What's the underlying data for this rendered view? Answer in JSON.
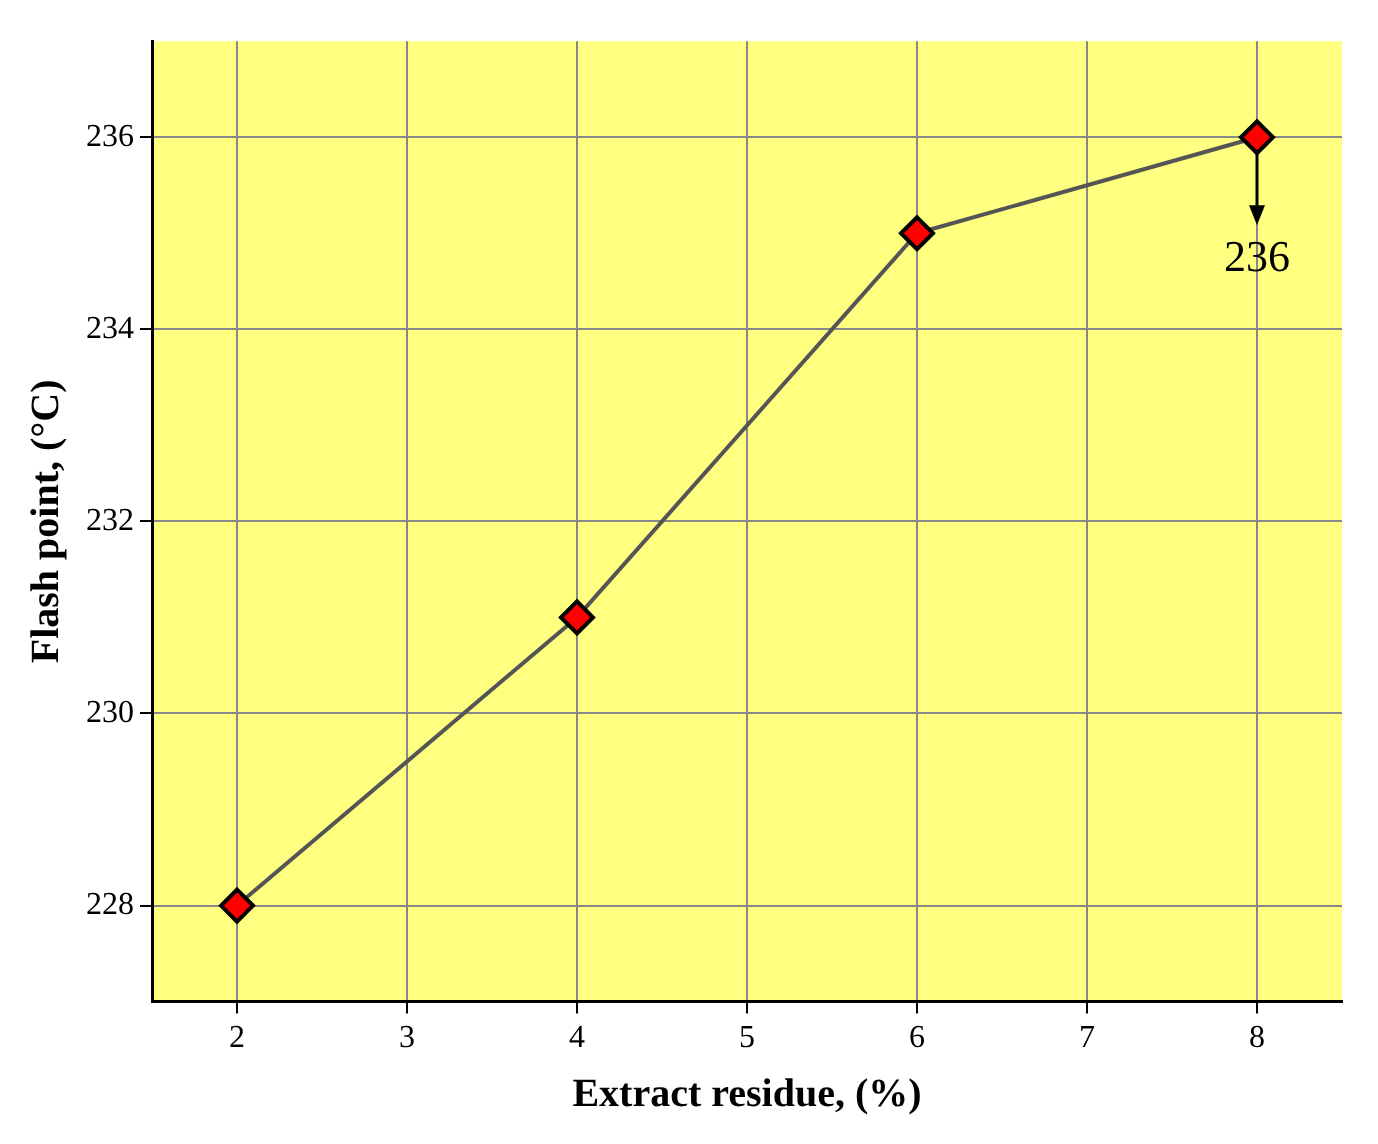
{
  "chart_data": {
    "type": "line",
    "xlabel": "Extract residue, (%)",
    "ylabel": "Flash point, (°C)",
    "x": [
      2,
      4,
      6,
      8
    ],
    "series": [
      {
        "color": "#555555",
        "values": [
          228,
          231,
          235,
          236
        ]
      }
    ],
    "xlim": [
      1.5,
      8.5
    ],
    "xticks": [
      2,
      3,
      4,
      5,
      6,
      7,
      8
    ],
    "ylim": [
      227,
      237
    ],
    "yticks": [
      228,
      230,
      232,
      234,
      236
    ],
    "grid": true,
    "legend": false,
    "marker": "diamond",
    "line_style": "solid",
    "annotations": [
      {
        "text": "236",
        "x": 8,
        "y": 236
      }
    ]
  }
}
